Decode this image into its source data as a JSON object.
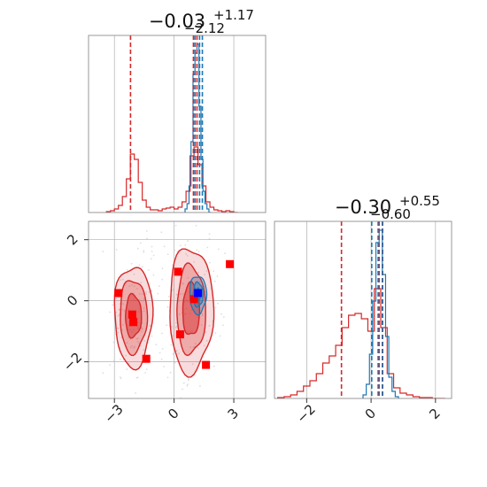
{
  "chart_data": {
    "type": "corner",
    "colors": {
      "red": "#d62728",
      "blue": "#1f77b4",
      "scatter_marker": "#ff0000",
      "true_marker": "#0000ff",
      "grid": "#b0b0b0",
      "frame": "#808080"
    },
    "x_axis": {
      "range": [
        -4.3,
        4.6
      ],
      "ticks": [
        -3,
        0,
        3
      ],
      "tick_labels": [
        "−3",
        "0",
        "3"
      ]
    },
    "y_axis": {
      "range": [
        -3.2,
        2.6
      ],
      "ticks": [
        -2,
        0,
        2
      ],
      "tick_labels": [
        "−2",
        "0",
        "2"
      ]
    },
    "x2_axis": {
      "range": [
        -3.0,
        2.5
      ],
      "ticks": [
        -2,
        0,
        2
      ],
      "tick_labels": [
        "−2",
        "0",
        "2"
      ]
    },
    "top_panel": {
      "title": {
        "main": "−0.03",
        "sup": "+1.17",
        "sub": "−2.12"
      },
      "red_quantile_lines": [
        -2.19,
        0.97,
        1.15
      ],
      "blue_quantile_lines": [
        1.05,
        1.28,
        1.42
      ],
      "red_hist": {
        "x": [
          -3.3,
          -3.1,
          -2.9,
          -2.7,
          -2.5,
          -2.3,
          -2.1,
          -1.9,
          -1.7,
          -1.5,
          -1.3,
          -1.1,
          -0.9,
          -0.7,
          -0.5,
          -0.3,
          -0.1,
          0.1,
          0.3,
          0.5,
          0.7,
          0.9,
          1.1,
          1.3,
          1.5,
          1.7,
          1.9,
          2.1,
          2.3,
          2.5,
          2.7,
          2.9,
          3.1
        ],
        "y": [
          0.005,
          0.01,
          0.02,
          0.04,
          0.09,
          0.19,
          0.33,
          0.3,
          0.17,
          0.07,
          0.03,
          0.015,
          0.015,
          0.01,
          0.02,
          0.025,
          0.03,
          0.02,
          0.03,
          0.06,
          0.12,
          0.32,
          0.37,
          0.27,
          0.15,
          0.06,
          0.03,
          0.015,
          0.01,
          0.005,
          0.01,
          0.005,
          0.0
        ]
      },
      "blue_hist": {
        "x": [
          0.6,
          0.7,
          0.8,
          0.9,
          1.0,
          1.1,
          1.2,
          1.3,
          1.4,
          1.5,
          1.6,
          1.7,
          1.8
        ],
        "y": [
          0.02,
          0.05,
          0.15,
          0.4,
          0.78,
          0.9,
          0.95,
          0.6,
          0.3,
          0.12,
          0.05,
          0.02,
          0.0
        ]
      }
    },
    "right_panel": {
      "title": {
        "main": "−0.30",
        "sup": "+0.55",
        "sub": "−0.60"
      },
      "red_quantile_lines": [
        -0.92,
        0.22,
        0.35
      ],
      "blue_quantile_lines": [
        0.02,
        0.25,
        0.36
      ],
      "red_hist": {
        "x": [
          -2.8,
          -2.6,
          -2.4,
          -2.2,
          -2.0,
          -1.8,
          -1.6,
          -1.4,
          -1.2,
          -1.0,
          -0.8,
          -0.6,
          -0.4,
          -0.2,
          0.0,
          0.2,
          0.4,
          0.6,
          0.8,
          1.0,
          1.2,
          1.4,
          1.6,
          1.8,
          2.0,
          2.2
        ],
        "y": [
          0.005,
          0.01,
          0.02,
          0.04,
          0.07,
          0.1,
          0.14,
          0.2,
          0.24,
          0.3,
          0.4,
          0.47,
          0.48,
          0.45,
          0.38,
          0.62,
          0.4,
          0.14,
          0.06,
          0.03,
          0.02,
          0.01,
          0.005,
          0.005,
          0.0,
          0.0
        ]
      },
      "blue_hist": {
        "x": [
          -0.2,
          -0.1,
          0.0,
          0.1,
          0.2,
          0.3,
          0.4,
          0.5,
          0.6,
          0.7,
          0.8
        ],
        "y": [
          0.02,
          0.08,
          0.25,
          0.55,
          0.88,
          0.95,
          0.7,
          0.35,
          0.12,
          0.04,
          0.01
        ]
      }
    },
    "scatter_panel": {
      "red_markers": [
        {
          "x": -2.8,
          "y": 0.25
        },
        {
          "x": -2.1,
          "y": -0.45
        },
        {
          "x": -2.05,
          "y": -0.7
        },
        {
          "x": -1.4,
          "y": -1.9
        },
        {
          "x": 0.2,
          "y": 0.95
        },
        {
          "x": 0.3,
          "y": -1.1
        },
        {
          "x": 1.0,
          "y": 0.05
        },
        {
          "x": 1.6,
          "y": -2.1
        },
        {
          "x": 2.8,
          "y": 1.2
        }
      ],
      "blue_markers": [
        {
          "x": 1.2,
          "y": 0.25
        }
      ],
      "red_clusters": [
        {
          "cx": -2.05,
          "cy": -0.5,
          "levels": [
            {
              "rx": 0.95,
              "ry": 1.65,
              "fill_opacity": 0.3
            },
            {
              "rx": 0.68,
              "ry": 1.2,
              "fill_opacity": 0.5
            },
            {
              "rx": 0.4,
              "ry": 0.7,
              "fill_opacity": 0.85
            }
          ]
        },
        {
          "cx": 0.85,
          "cy": -0.3,
          "levels": [
            {
              "rx": 1.1,
              "ry": 2.05,
              "fill_opacity": 0.3
            },
            {
              "rx": 0.72,
              "ry": 1.45,
              "fill_opacity": 0.5
            },
            {
              "rx": 0.42,
              "ry": 0.85,
              "fill_opacity": 0.85
            }
          ]
        }
      ],
      "blue_cluster": {
        "cx": 1.2,
        "cy": 0.2,
        "levels": [
          {
            "rx": 0.42,
            "ry": 0.62
          },
          {
            "rx": 0.25,
            "ry": 0.4
          },
          {
            "rx": 0.12,
            "ry": 0.2
          }
        ]
      }
    }
  }
}
